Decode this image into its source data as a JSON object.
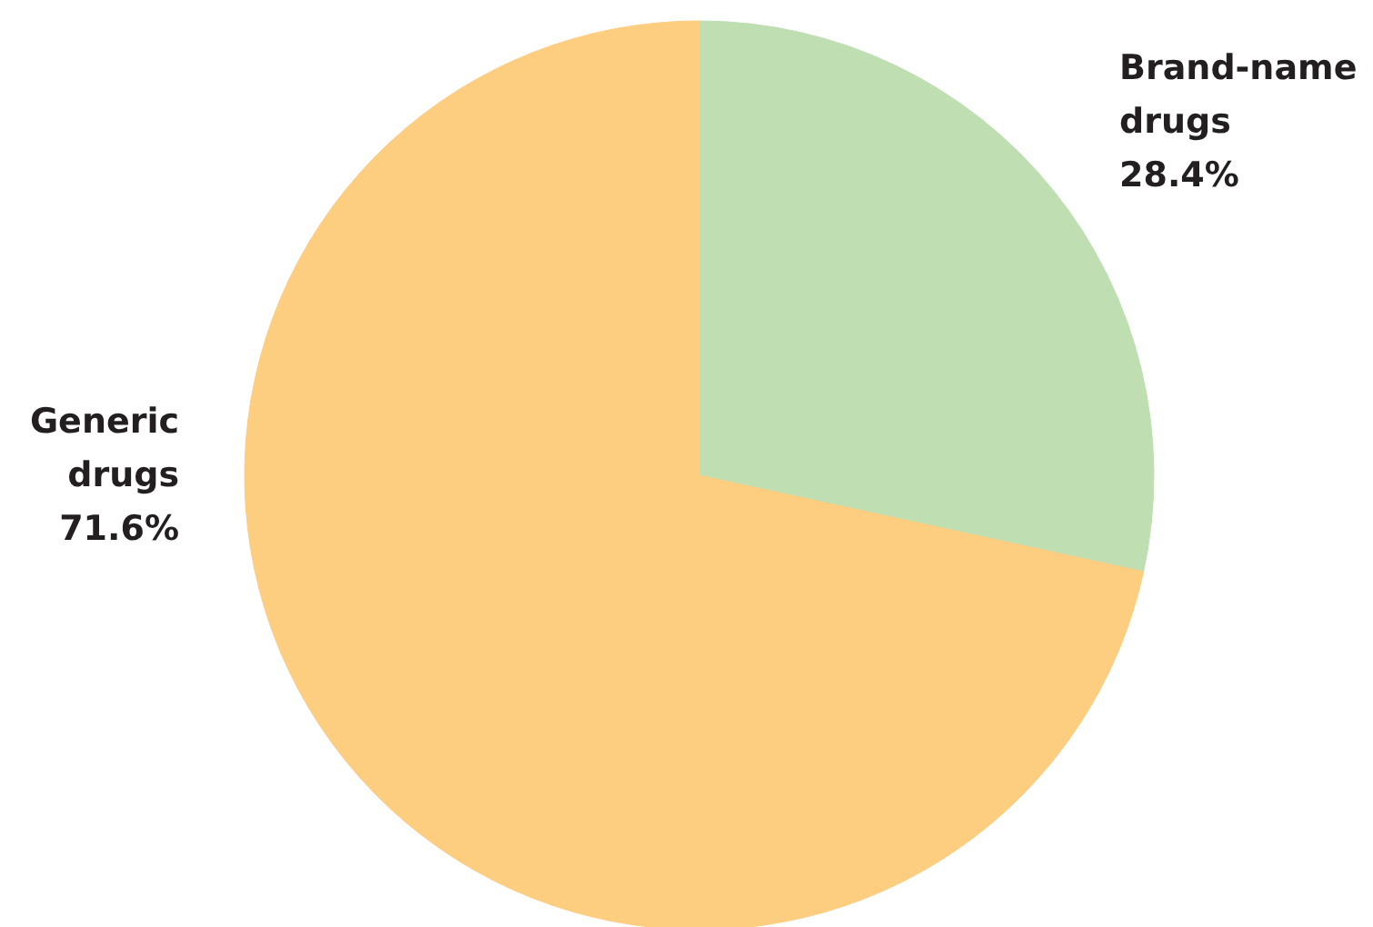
{
  "chart_data": {
    "type": "pie",
    "categories": [
      "Brand-name drugs",
      "Generic drugs"
    ],
    "values": [
      28.4,
      71.6
    ],
    "colors": [
      "#bfdfb3",
      "#fdcd80"
    ],
    "value_labels": [
      "28.4%",
      "71.6%"
    ]
  }
}
